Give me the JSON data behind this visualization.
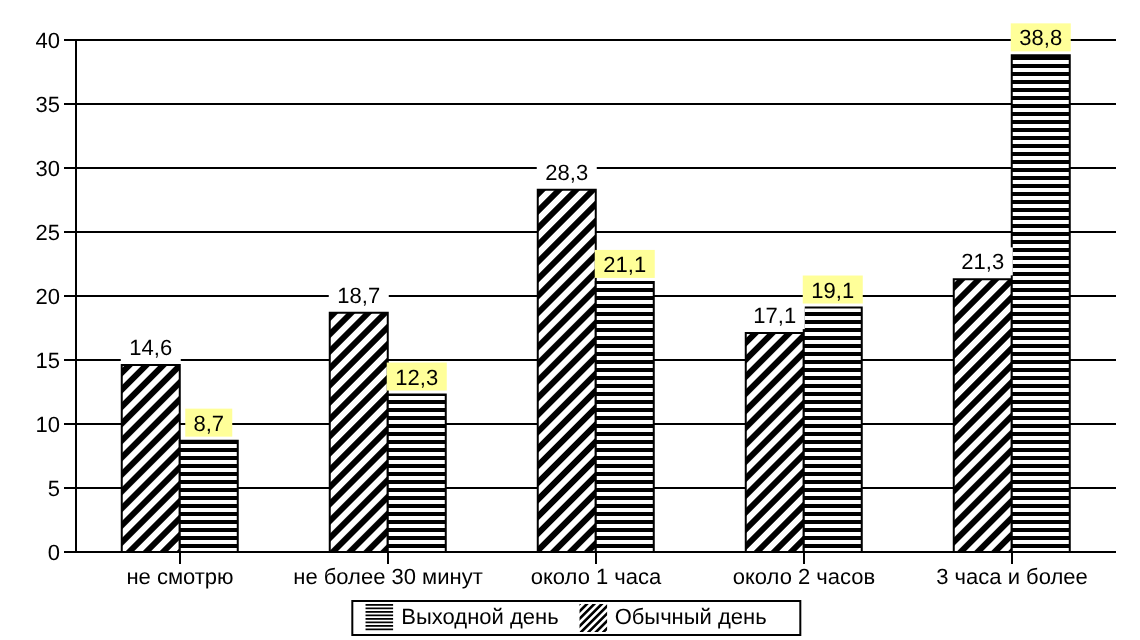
{
  "chart_data": {
    "type": "bar",
    "categories": [
      "не смотрю",
      "не более 30 минут",
      "около 1 часа",
      "около 2 часов",
      "3 часа и более"
    ],
    "series": [
      {
        "name": "Обычный день",
        "color": "#000000",
        "values": [
          14.6,
          18.7,
          28.3,
          17.1,
          21.3
        ],
        "value_labels": [
          "14,6",
          "18,7",
          "28,3",
          "17,1",
          "21,3"
        ]
      },
      {
        "name": "Выходной день",
        "color": "#000000",
        "values": [
          8.7,
          12.3,
          21.1,
          19.1,
          38.8
        ],
        "value_labels": [
          "8,7",
          "12,3",
          "21,1",
          "19,1",
          "38,8"
        ]
      }
    ],
    "ylim": [
      0,
      40
    ],
    "yticks": [
      0,
      5,
      10,
      15,
      20,
      25,
      30,
      35,
      40
    ],
    "grid": "y",
    "legend": "bottom"
  }
}
